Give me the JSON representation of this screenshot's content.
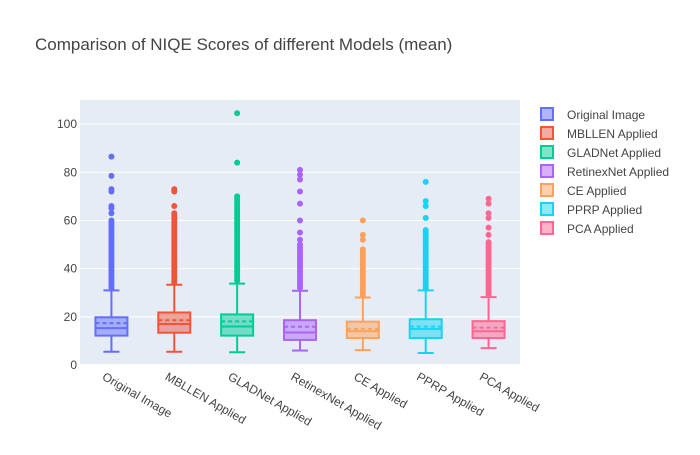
{
  "chart_data": {
    "type": "box",
    "title": "Comparison of NIQE Scores of different Models (mean)",
    "xlabel": "",
    "ylabel": "",
    "ylim": [
      0,
      110
    ],
    "yticks": [
      0,
      20,
      40,
      60,
      80,
      100
    ],
    "grid": true,
    "legend_position": "right",
    "colors": {
      "plot_bg": "#e5ecf6",
      "grid": "#ffffff",
      "title": "#444444",
      "tick": "#444444"
    },
    "series": [
      {
        "name": "Original Image",
        "color": "#636efa",
        "stats": {
          "min": 5.5,
          "q1": 12.2,
          "median": 15.3,
          "q3": 19.8,
          "max": 31.0,
          "mean": 17.4
        },
        "outliers": [
          32,
          33,
          34,
          35,
          36,
          37,
          38,
          39,
          40,
          41,
          42,
          43,
          44,
          45,
          46,
          47,
          48,
          49,
          50,
          51,
          52,
          53,
          54,
          55,
          56,
          57,
          58,
          59,
          60,
          63,
          65,
          66,
          72,
          73,
          78.5,
          86.5
        ]
      },
      {
        "name": "MBLLEN Applied",
        "color": "#ef553b",
        "stats": {
          "min": 5.5,
          "q1": 13.4,
          "median": 17.0,
          "q3": 21.8,
          "max": 33.3,
          "mean": 18.6
        },
        "outliers": [
          34,
          35,
          36,
          37,
          38,
          39,
          40,
          41,
          42,
          43,
          44,
          45,
          46,
          47,
          48,
          49,
          50,
          51,
          52,
          53,
          54,
          55,
          56,
          57,
          58,
          59,
          60,
          61,
          62,
          63,
          66,
          72,
          73
        ]
      },
      {
        "name": "GLADNet Applied",
        "color": "#00cc96",
        "stats": {
          "min": 5.3,
          "q1": 12.2,
          "median": 16.0,
          "q3": 21.0,
          "max": 33.8,
          "mean": 18.1
        },
        "outliers": [
          35,
          36,
          37,
          38,
          39,
          40,
          41,
          42,
          43,
          44,
          45,
          46,
          47,
          48,
          49,
          50,
          51,
          52,
          53,
          54,
          55,
          56,
          57,
          58,
          59,
          60,
          61,
          62,
          63,
          64,
          65,
          66,
          67,
          68,
          69,
          70,
          84,
          104.5
        ]
      },
      {
        "name": "RetinexNet Applied",
        "color": "#ab63fa",
        "stats": {
          "min": 6.0,
          "q1": 10.4,
          "median": 13.5,
          "q3": 18.6,
          "max": 30.8,
          "mean": 15.9
        },
        "outliers": [
          32,
          33,
          34,
          35,
          36,
          37,
          38,
          39,
          40,
          41,
          42,
          43,
          44,
          45,
          46,
          47,
          48,
          49,
          50,
          52,
          55,
          60,
          67,
          72,
          77,
          79,
          81
        ]
      },
      {
        "name": "CE Applied",
        "color": "#ffa15a",
        "stats": {
          "min": 6.2,
          "q1": 11.2,
          "median": 14.0,
          "q3": 18.0,
          "max": 28.0,
          "mean": 15.0
        },
        "outliers": [
          29,
          30,
          31,
          32,
          33,
          34,
          35,
          36,
          37,
          38,
          39,
          40,
          41,
          42,
          43,
          44,
          45,
          46,
          47,
          48,
          52,
          54,
          60
        ]
      },
      {
        "name": "PPRP Applied",
        "color": "#19d3f3",
        "stats": {
          "min": 5.0,
          "q1": 11.2,
          "median": 15.0,
          "q3": 19.0,
          "max": 31.0,
          "mean": 16.0
        },
        "outliers": [
          32,
          33,
          34,
          35,
          36,
          37,
          38,
          39,
          40,
          41,
          42,
          43,
          44,
          45,
          46,
          47,
          48,
          49,
          50,
          51,
          52,
          53,
          54,
          55,
          56,
          61,
          66,
          68,
          76
        ]
      },
      {
        "name": "PCA Applied",
        "color": "#ff6692",
        "stats": {
          "min": 7.0,
          "q1": 11.2,
          "median": 14.0,
          "q3": 18.2,
          "max": 28.2,
          "mean": 15.5
        },
        "outliers": [
          29,
          30,
          31,
          32,
          33,
          34,
          35,
          36,
          37,
          38,
          39,
          40,
          41,
          42,
          43,
          44,
          45,
          46,
          47,
          48,
          49,
          50,
          51,
          54,
          57,
          61,
          63,
          67,
          69
        ]
      }
    ]
  }
}
